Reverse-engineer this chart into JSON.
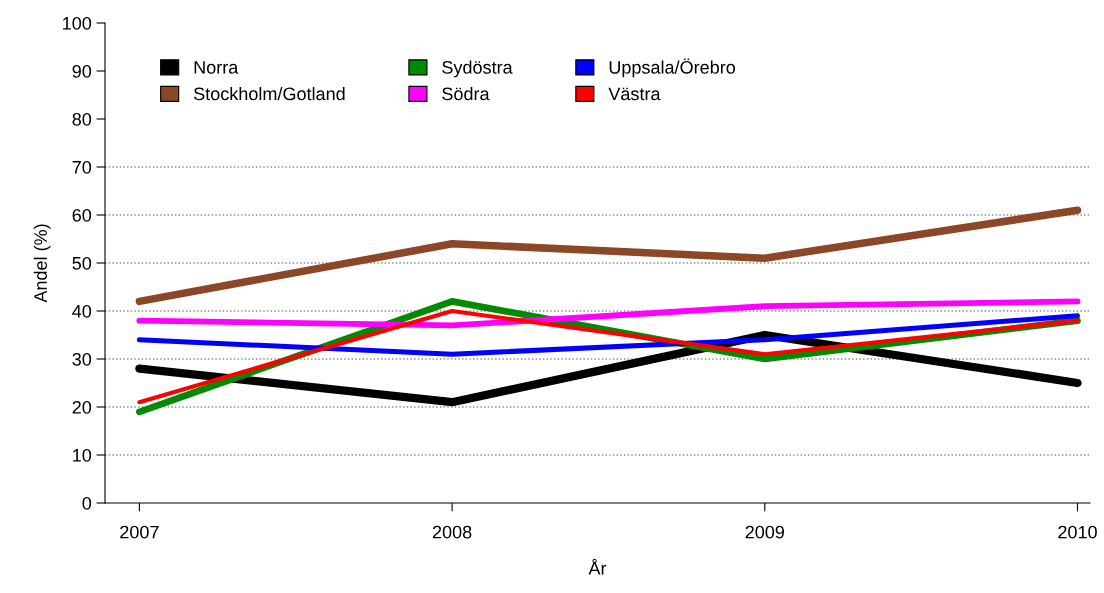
{
  "chart_data": {
    "type": "line",
    "xlabel": "År",
    "ylabel": "Andel (%)",
    "x": [
      2007,
      2008,
      2009,
      2010
    ],
    "series": [
      {
        "name": "Norra",
        "color": "#000000",
        "values": [
          28,
          21,
          35,
          25
        ]
      },
      {
        "name": "Stockholm/Gotland",
        "color": "#8b4726",
        "values": [
          42,
          54,
          51,
          61
        ]
      },
      {
        "name": "Sydöstra",
        "color": "#008b00",
        "values": [
          19,
          42,
          30,
          38
        ]
      },
      {
        "name": "Södra",
        "color": "#ff00ff",
        "values": [
          38,
          37,
          41,
          42
        ]
      },
      {
        "name": "Uppsala/Örebro",
        "color": "#0000ff",
        "values": [
          34,
          31,
          34,
          39
        ]
      },
      {
        "name": "Västra",
        "color": "#ff0000",
        "values": [
          21,
          40,
          31,
          38
        ]
      }
    ],
    "xlim": [
      2006.89,
      2010.04
    ],
    "xticks": [
      2007,
      2008,
      2009,
      2010
    ],
    "ylim": [
      0,
      100
    ],
    "yticks": [
      0,
      10,
      20,
      30,
      40,
      50,
      60,
      70,
      80,
      90,
      100
    ],
    "ref_lines": [
      {
        "axis": "y",
        "value": 10,
        "color": "#888888",
        "line_style": "dotted"
      },
      {
        "axis": "y",
        "value": 20,
        "color": "#888888",
        "line_style": "dotted"
      },
      {
        "axis": "y",
        "value": 30,
        "color": "#888888",
        "line_style": "dotted"
      },
      {
        "axis": "y",
        "value": 40,
        "color": "#888888",
        "line_style": "dotted"
      },
      {
        "axis": "y",
        "value": 50,
        "color": "#888888",
        "line_style": "dotted"
      },
      {
        "axis": "y",
        "value": 60,
        "color": "#888888",
        "line_style": "dotted"
      },
      {
        "axis": "y",
        "value": 70,
        "color": "#888888",
        "line_style": "dotted"
      }
    ],
    "grid": false,
    "legend": "top left",
    "marker": "none",
    "line_style": "solid"
  }
}
